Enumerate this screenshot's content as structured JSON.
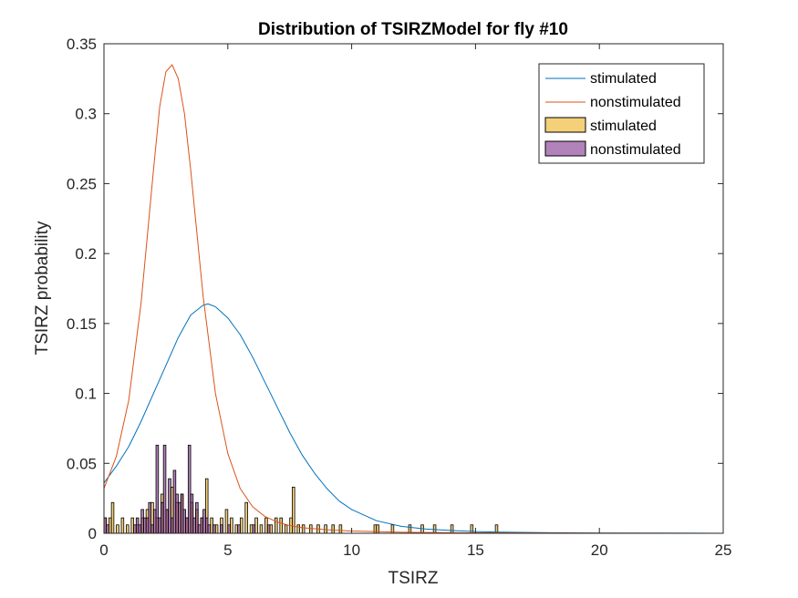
{
  "chart_data": {
    "type": "histogram+line",
    "title": "Distribution of TSIRZModel for fly #10",
    "xlabel": "TSIRZ",
    "ylabel": "TSIRZ probability",
    "xlim": [
      0,
      25
    ],
    "ylim": [
      0,
      0.35
    ],
    "xticks": [
      0,
      5,
      10,
      15,
      20,
      25
    ],
    "xtick_labels": [
      "0",
      "5",
      "10",
      "15",
      "20",
      "25"
    ],
    "yticks": [
      0,
      0.05,
      0.1,
      0.15,
      0.2,
      0.25,
      0.3,
      0.35
    ],
    "ytick_labels": [
      "0",
      "0.05",
      "0.1",
      "0.15",
      "0.2",
      "0.25",
      "0.3",
      "0.35"
    ],
    "grid": false,
    "legend_position": "top-right",
    "legend": [
      {
        "label": "stimulated",
        "kind": "line",
        "color": "#0072BD"
      },
      {
        "label": "nonstimulated",
        "kind": "line",
        "color": "#D95319"
      },
      {
        "label": "stimulated",
        "kind": "patch",
        "color": "#EDB120"
      },
      {
        "label": "nonstimulated",
        "kind": "patch",
        "color": "#7E2F8E"
      }
    ],
    "bin_width": 0.1,
    "histograms": [
      {
        "name": "stimulated",
        "color": "#EDB120",
        "face_alpha": 0.6,
        "bins": [
          [
            0.0,
            0.011
          ],
          [
            0.2,
            0.011
          ],
          [
            0.3,
            0.022
          ],
          [
            0.5,
            0.006
          ],
          [
            0.7,
            0.011
          ],
          [
            0.9,
            0.006
          ],
          [
            1.1,
            0.011
          ],
          [
            1.3,
            0.006
          ],
          [
            1.5,
            0.011
          ],
          [
            1.7,
            0.017
          ],
          [
            1.9,
            0.022
          ],
          [
            2.1,
            0.011
          ],
          [
            2.3,
            0.028
          ],
          [
            2.5,
            0.017
          ],
          [
            2.7,
            0.033
          ],
          [
            2.9,
            0.022
          ],
          [
            3.1,
            0.028
          ],
          [
            3.3,
            0.011
          ],
          [
            3.5,
            0.022
          ],
          [
            3.7,
            0.017
          ],
          [
            3.9,
            0.011
          ],
          [
            4.1,
            0.039
          ],
          [
            4.3,
            0.011
          ],
          [
            4.5,
            0.006
          ],
          [
            4.7,
            0.011
          ],
          [
            4.9,
            0.017
          ],
          [
            5.1,
            0.011
          ],
          [
            5.3,
            0.006
          ],
          [
            5.5,
            0.011
          ],
          [
            5.7,
            0.022
          ],
          [
            5.9,
            0.006
          ],
          [
            6.1,
            0.011
          ],
          [
            6.3,
            0.006
          ],
          [
            6.5,
            0.011
          ],
          [
            6.7,
            0.006
          ],
          [
            6.9,
            0.011
          ],
          [
            7.1,
            0.011
          ],
          [
            7.3,
            0.006
          ],
          [
            7.5,
            0.011
          ],
          [
            7.6,
            0.033
          ],
          [
            7.8,
            0.006
          ],
          [
            8.0,
            0.006
          ],
          [
            8.3,
            0.006
          ],
          [
            8.6,
            0.006
          ],
          [
            8.9,
            0.006
          ],
          [
            9.2,
            0.006
          ],
          [
            9.5,
            0.006
          ],
          [
            10.9,
            0.006
          ],
          [
            11.0,
            0.006
          ],
          [
            11.6,
            0.006
          ],
          [
            12.3,
            0.006
          ],
          [
            12.8,
            0.006
          ],
          [
            13.3,
            0.006
          ],
          [
            14.0,
            0.006
          ],
          [
            14.8,
            0.006
          ],
          [
            15.8,
            0.006
          ]
        ]
      },
      {
        "name": "nonstimulated",
        "color": "#7E2F8E",
        "face_alpha": 0.6,
        "bins": [
          [
            0.0,
            0.011
          ],
          [
            0.1,
            0.006
          ],
          [
            1.2,
            0.006
          ],
          [
            1.3,
            0.011
          ],
          [
            1.4,
            0.006
          ],
          [
            1.5,
            0.017
          ],
          [
            1.6,
            0.011
          ],
          [
            1.7,
            0.011
          ],
          [
            1.8,
            0.022
          ],
          [
            1.9,
            0.006
          ],
          [
            2.0,
            0.017
          ],
          [
            2.1,
            0.063
          ],
          [
            2.2,
            0.011
          ],
          [
            2.3,
            0.022
          ],
          [
            2.4,
            0.063
          ],
          [
            2.5,
            0.017
          ],
          [
            2.6,
            0.039
          ],
          [
            2.7,
            0.011
          ],
          [
            2.8,
            0.045
          ],
          [
            2.9,
            0.028
          ],
          [
            3.0,
            0.022
          ],
          [
            3.1,
            0.028
          ],
          [
            3.2,
            0.017
          ],
          [
            3.3,
            0.011
          ],
          [
            3.4,
            0.063
          ],
          [
            3.5,
            0.028
          ],
          [
            3.6,
            0.011
          ],
          [
            3.7,
            0.022
          ],
          [
            3.8,
            0.006
          ],
          [
            3.9,
            0.011
          ],
          [
            4.0,
            0.017
          ],
          [
            4.1,
            0.011
          ],
          [
            4.2,
            0.006
          ],
          [
            4.4,
            0.006
          ],
          [
            4.7,
            0.006
          ],
          [
            5.0,
            0.006
          ],
          [
            5.4,
            0.006
          ],
          [
            6.0,
            0.006
          ],
          [
            6.6,
            0.006
          ]
        ]
      }
    ],
    "curves": [
      {
        "name": "stimulated",
        "color": "#0072BD",
        "x": [
          0,
          0.5,
          1,
          1.5,
          2,
          2.5,
          3,
          3.5,
          4,
          4.2,
          4.5,
          5,
          5.5,
          6,
          6.5,
          7,
          7.5,
          8,
          8.5,
          9,
          9.5,
          10,
          11,
          12,
          13,
          14,
          15,
          16,
          18,
          20,
          25
        ],
        "y": [
          0.036,
          0.048,
          0.062,
          0.08,
          0.1,
          0.12,
          0.14,
          0.156,
          0.163,
          0.164,
          0.162,
          0.154,
          0.142,
          0.126,
          0.108,
          0.09,
          0.072,
          0.056,
          0.043,
          0.032,
          0.023,
          0.017,
          0.009,
          0.005,
          0.003,
          0.002,
          0.0012,
          0.0008,
          0.0004,
          0.0002,
          0
        ]
      },
      {
        "name": "nonstimulated",
        "color": "#D95319",
        "x": [
          0,
          0.5,
          1,
          1.5,
          2,
          2.25,
          2.5,
          2.75,
          3,
          3.25,
          3.5,
          4,
          4.5,
          5,
          5.5,
          6,
          6.5,
          7,
          7.5,
          8,
          9,
          10,
          12,
          15,
          20,
          25
        ],
        "y": [
          0.032,
          0.055,
          0.095,
          0.165,
          0.26,
          0.305,
          0.33,
          0.335,
          0.325,
          0.3,
          0.26,
          0.17,
          0.1,
          0.057,
          0.032,
          0.019,
          0.012,
          0.008,
          0.0055,
          0.004,
          0.0025,
          0.0016,
          0.0007,
          0.0003,
          0.0001,
          0
        ]
      }
    ]
  }
}
